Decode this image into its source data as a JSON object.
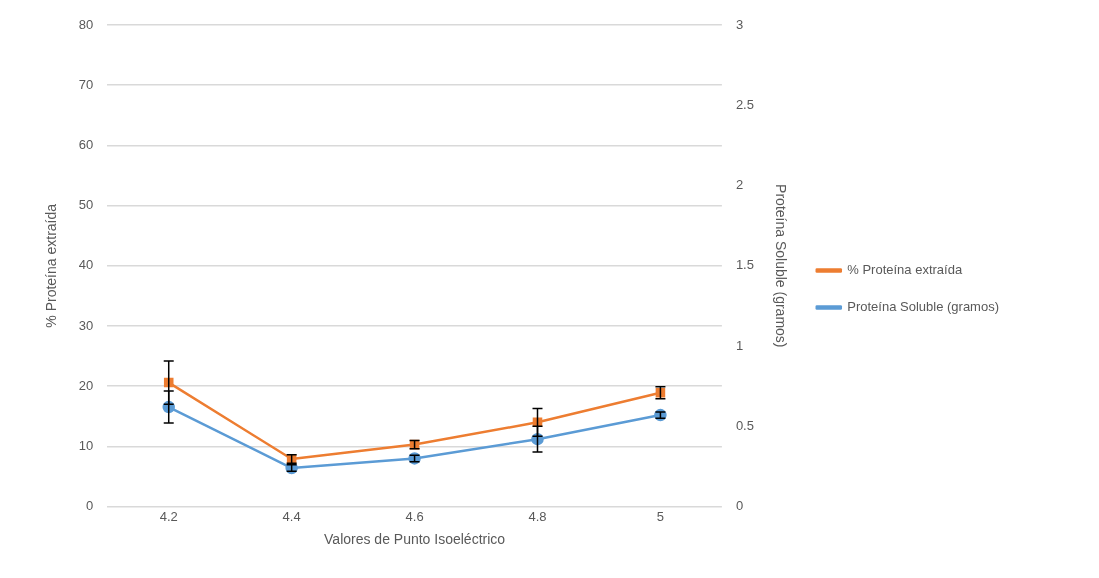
{
  "chart_data": {
    "type": "line",
    "xlabel": "Valores de Punto Isoeléctrico",
    "ylabel": "% Proteína extraída",
    "y2label": "Proteína Soluble (gramos)",
    "categories": [
      "4.2",
      "4.4",
      "4.6",
      "4.8",
      "5"
    ],
    "series": [
      {
        "name": "% Proteína extraída",
        "color": "#ed7d31",
        "marker": "square",
        "values": [
          20.6,
          7.9,
          10.3,
          14.0,
          18.9
        ],
        "errors": [
          3.6,
          0.7,
          0.7,
          2.3,
          1.0
        ]
      },
      {
        "name": "Proteína Soluble (gramos)",
        "color": "#5b9bd5",
        "marker": "circle",
        "axis": "y2",
        "values": [
          0.62,
          0.24,
          0.3,
          0.42,
          0.57
        ],
        "errors": [
          0.1,
          0.02,
          0.02,
          0.08,
          0.02
        ]
      }
    ],
    "ylim": [
      0,
      80
    ],
    "yticks": [
      0,
      10,
      20,
      30,
      40,
      50,
      60,
      70,
      80
    ],
    "y2lim": [
      0,
      3
    ],
    "y2ticks": [
      0,
      0.5,
      1,
      1.5,
      2,
      2.5,
      3
    ],
    "grid": "y",
    "legend": "right"
  }
}
